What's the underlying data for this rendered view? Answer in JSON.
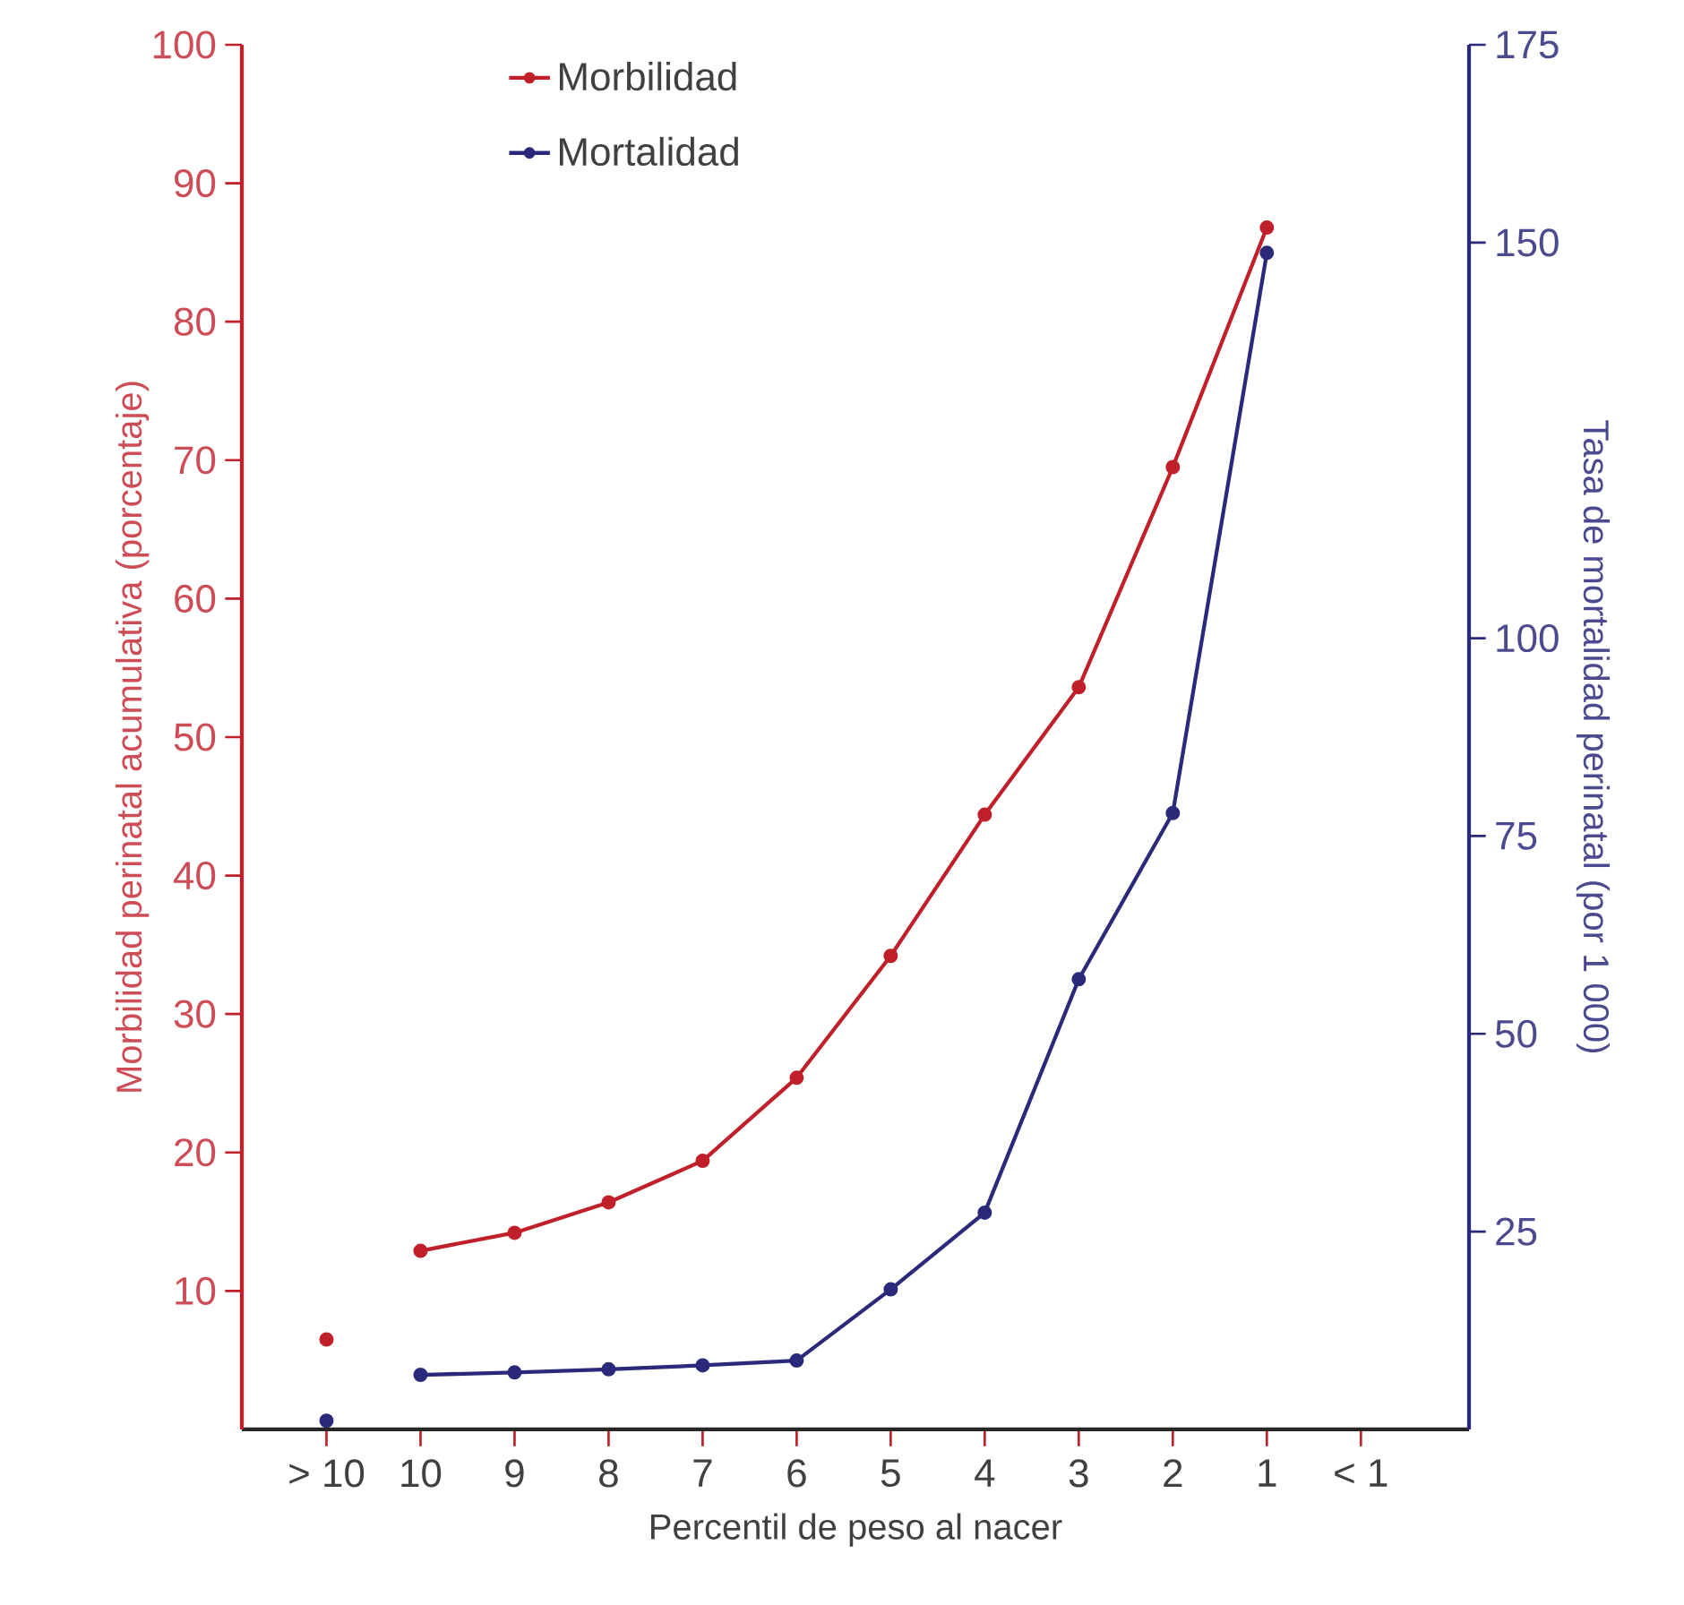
{
  "chart_data": {
    "type": "line",
    "xlabel": "Percentil de peso al nacer",
    "ylabel": "Morbilidad perinatal acumulativa (porcentaje)",
    "y2label": "Tasa de mortalidad perinatal (por 1 000)",
    "categories": [
      "> 10",
      "10",
      "9",
      "8",
      "7",
      "6",
      "5",
      "4",
      "3",
      "2",
      "1",
      "< 1"
    ],
    "series": [
      {
        "name": "Morbilidad",
        "color": "#c0202a",
        "values": [
          null,
          12.9,
          14.2,
          16.4,
          19.4,
          25.4,
          34.2,
          44.4,
          53.6,
          69.5,
          86.8,
          null
        ]
      },
      {
        "name": "Mortalidad",
        "color": "#2b2a7a",
        "axis": "y2",
        "values": [
          null,
          6.9,
          7.2,
          7.6,
          8.1,
          8.7,
          17.7,
          27.4,
          56.9,
          77.9,
          148.7,
          null
        ]
      },
      {
        "type": "scatter",
        "color": "#c0202a",
        "values": [
          6.5,
          null,
          null,
          null,
          null,
          null,
          null,
          null,
          null,
          null,
          null,
          null
        ]
      },
      {
        "type": "scatter",
        "color": "#2b2a7a",
        "axis": "y2",
        "values": [
          1.1,
          null,
          null,
          null,
          null,
          null,
          null,
          null,
          null,
          null,
          null,
          null
        ]
      }
    ],
    "ylim": [
      0,
      100
    ],
    "yticks": [
      10,
      20,
      30,
      40,
      50,
      60,
      70,
      80,
      90,
      100
    ],
    "y2lim": [
      0,
      175
    ],
    "y2ticks": [
      25,
      50,
      75,
      100,
      150,
      175
    ],
    "marker": "circle",
    "line_style": "solid",
    "grid": false,
    "legend": "top"
  }
}
